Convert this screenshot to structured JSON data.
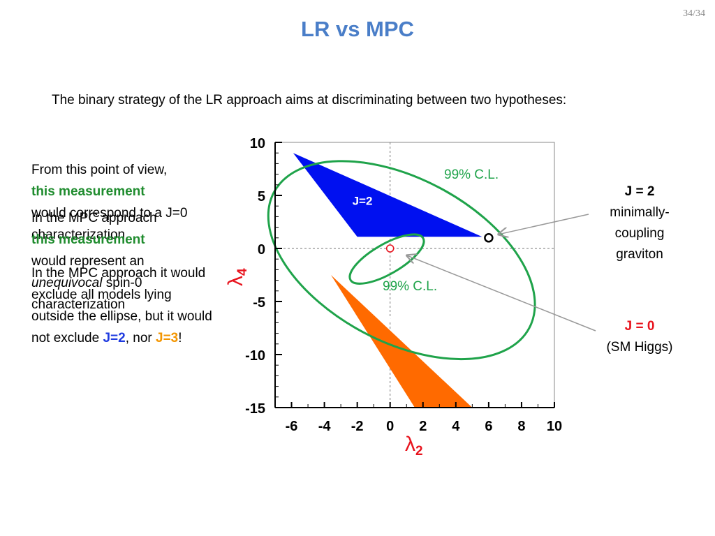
{
  "slide": {
    "title": "LR vs MPC",
    "page_number": "34/34",
    "intro": "The binary strategy of the LR approach aims at discriminating between two hypotheses:"
  },
  "left_text": {
    "block1": {
      "line1": "From this point of view,",
      "emphasis": "this measurement",
      "rest": "would correspond to a J=0 characterization"
    },
    "block2": {
      "line1": "In the MPC approach",
      "emphasis": "this measurement",
      "rest_before": "would represent an",
      "italic": "unequivocal",
      "rest_after": "spin-0 characterization"
    },
    "block3": {
      "text": "In the MPC approach it would exclude all models lying outside the ellipse, but it would not exclude",
      "j2": "J=2",
      "sep": ", nor",
      "j3": "J=3",
      "end": "!"
    }
  },
  "side_labels": {
    "j2": {
      "title": "J = 2",
      "line1": "minimally-",
      "line2": "coupling",
      "line3": "graviton"
    },
    "j0": {
      "title": "J = 0",
      "line1": "(SM Higgs)"
    }
  },
  "chart_data": {
    "type": "scatter",
    "xlabel": "λ2",
    "ylabel": "λ4",
    "xlim": [
      -7,
      10
    ],
    "ylim": [
      -15,
      10
    ],
    "x_ticks": [
      -6,
      -4,
      -2,
      0,
      2,
      4,
      6,
      8,
      10
    ],
    "y_ticks": [
      10,
      5,
      0,
      -5,
      -10,
      -15
    ],
    "regions": [
      {
        "name": "J=2",
        "color": "#0010F0",
        "polygon": [
          [
            -5.9,
            9
          ],
          [
            -2,
            1.1
          ],
          [
            5.6,
            1.1
          ]
        ]
      },
      {
        "name": "J=3",
        "color": "#FF6A00",
        "polygon": [
          [
            -3.6,
            -2.5
          ],
          [
            1.5,
            -15
          ],
          [
            5,
            -15
          ]
        ]
      }
    ],
    "contours": [
      {
        "label": "99% C.L.",
        "color": "#1FA34A",
        "center": [
          0.7,
          -1.1
        ],
        "rx": 8.8,
        "ry": 7.7,
        "rotation_deg": 28
      },
      {
        "label": "99% C.L.",
        "color": "#1FA34A",
        "center": [
          -0.2,
          -1
        ],
        "rx": 2.55,
        "ry": 1.4,
        "rotation_deg": -30
      }
    ],
    "points": [
      {
        "name": "J=2 point",
        "x": 6,
        "y": 1,
        "marker": "black circle"
      },
      {
        "name": "J=0 point",
        "x": 0,
        "y": 0,
        "marker": "red circle"
      }
    ],
    "colors": {
      "axis": "#000000",
      "label": "#E8141E",
      "grid": "#777777"
    }
  }
}
